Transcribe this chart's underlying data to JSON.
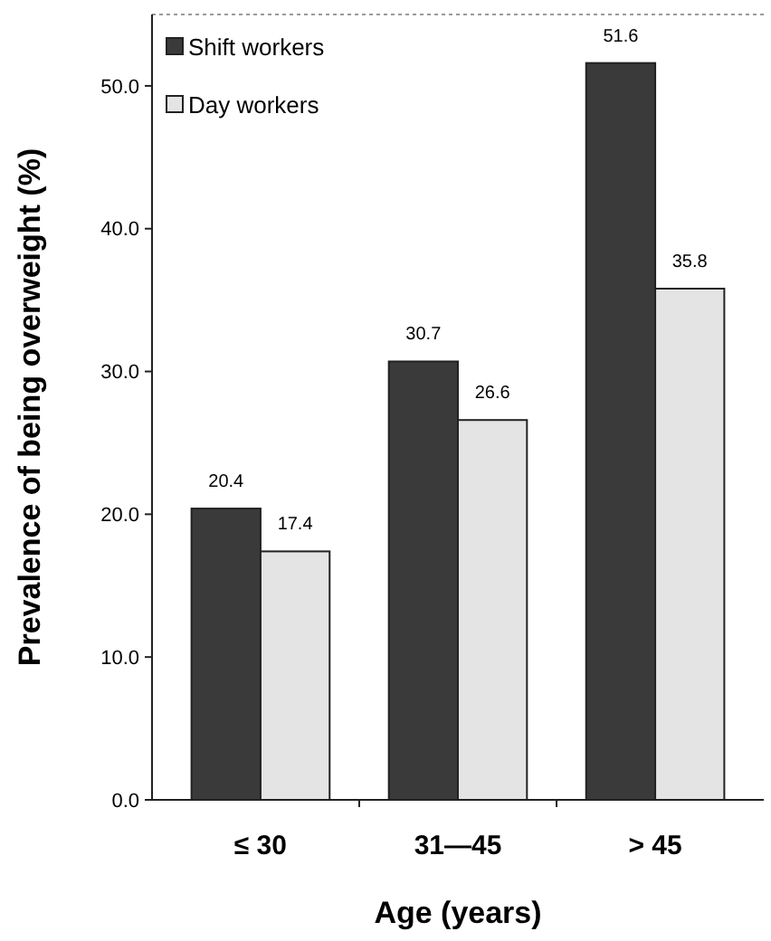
{
  "chart_data": {
    "type": "bar",
    "xlabel": "Age (years)",
    "ylabel": "Prevalence of being overweight (%)",
    "categories": [
      "≤ 30",
      "31—45",
      "> 45"
    ],
    "series": [
      {
        "name": "Shift workers",
        "color": "#3a3a3a",
        "values": [
          20.4,
          30.7,
          51.6
        ]
      },
      {
        "name": "Day workers",
        "color": "#e4e4e4",
        "values": [
          17.4,
          26.6,
          35.8
        ]
      }
    ],
    "ylim": [
      0,
      55
    ],
    "yticks": [
      {
        "value": 0,
        "label": "0.0"
      },
      {
        "value": 10,
        "label": "10.0"
      },
      {
        "value": 20,
        "label": "20.0"
      },
      {
        "value": 30,
        "label": "30.0"
      },
      {
        "value": 40,
        "label": "40.0"
      },
      {
        "value": 50,
        "label": "50.0"
      }
    ],
    "data_labels": true,
    "legend": "top left",
    "grid": false
  }
}
